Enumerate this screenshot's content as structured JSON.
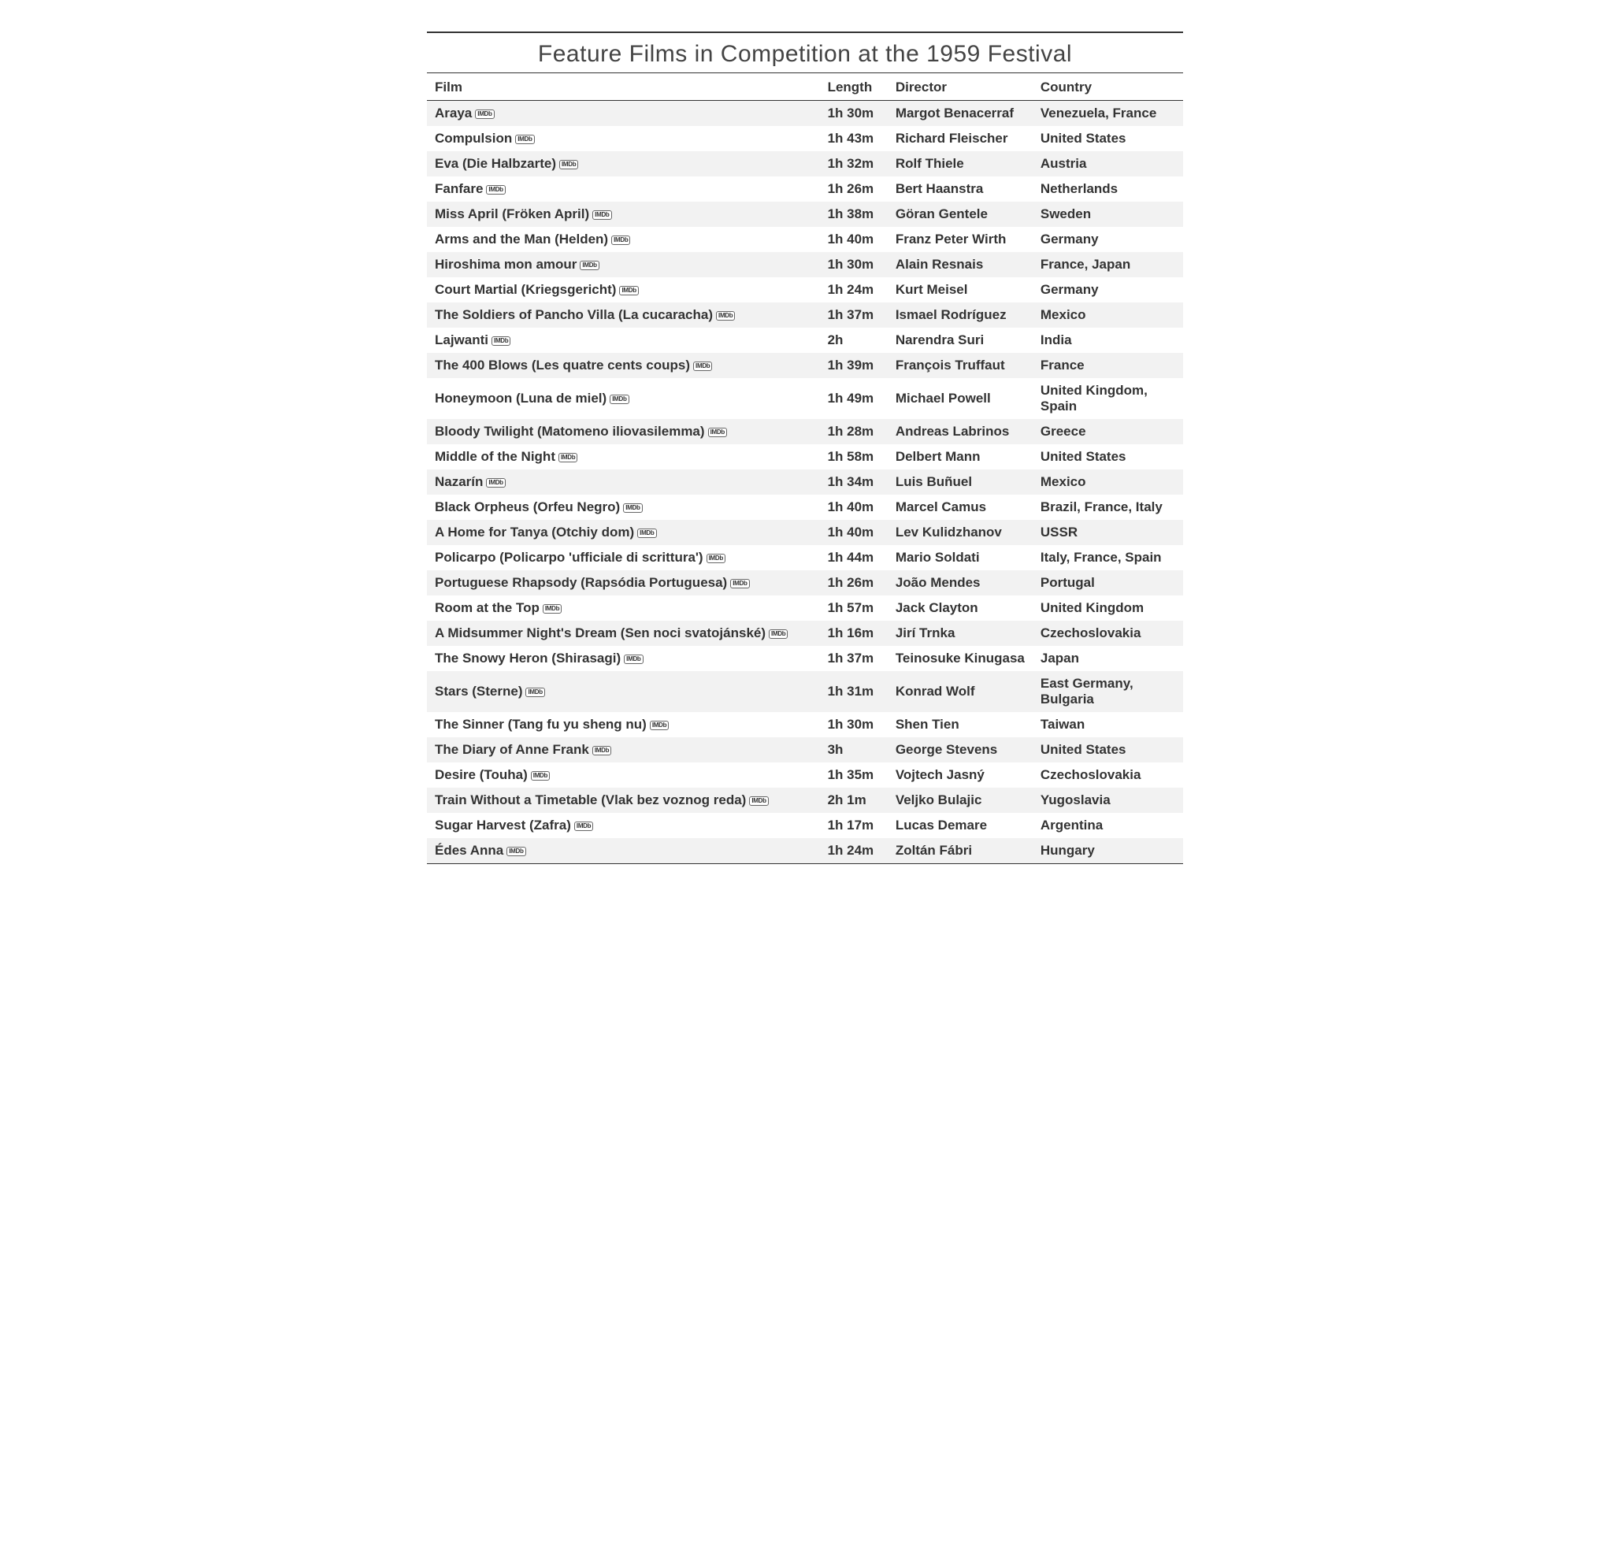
{
  "title": "Feature Films in Competition at the 1959 Festival",
  "columns": [
    "Film",
    "Length",
    "Director",
    "Country"
  ],
  "imdb_label": "IMDb",
  "rows": [
    {
      "film": "Araya",
      "length": "1h 30m",
      "director": "Margot Benacerraf",
      "country": "Venezuela, France"
    },
    {
      "film": "Compulsion",
      "length": "1h 43m",
      "director": "Richard Fleischer",
      "country": "United States"
    },
    {
      "film": "Eva (Die Halbzarte)",
      "length": "1h 32m",
      "director": "Rolf Thiele",
      "country": "Austria"
    },
    {
      "film": "Fanfare",
      "length": "1h 26m",
      "director": "Bert Haanstra",
      "country": "Netherlands"
    },
    {
      "film": "Miss April (Fröken April)",
      "length": "1h 38m",
      "director": "Göran Gentele",
      "country": "Sweden"
    },
    {
      "film": "Arms and the Man (Helden)",
      "length": "1h 40m",
      "director": "Franz Peter Wirth",
      "country": "Germany"
    },
    {
      "film": "Hiroshima mon amour",
      "length": "1h 30m",
      "director": "Alain Resnais",
      "country": "France, Japan"
    },
    {
      "film": "Court Martial (Kriegsgericht)",
      "length": "1h 24m",
      "director": "Kurt Meisel",
      "country": "Germany"
    },
    {
      "film": "The Soldiers of Pancho Villa (La cucaracha)",
      "length": "1h 37m",
      "director": "Ismael Rodríguez",
      "country": "Mexico"
    },
    {
      "film": "Lajwanti",
      "length": "2h",
      "director": "Narendra Suri",
      "country": "India"
    },
    {
      "film": "The 400 Blows (Les quatre cents coups)",
      "length": "1h 39m",
      "director": "François Truffaut",
      "country": "France"
    },
    {
      "film": "Honeymoon (Luna de miel)",
      "length": "1h 49m",
      "director": "Michael Powell",
      "country": "United Kingdom, Spain"
    },
    {
      "film": "Bloody Twilight (Matomeno iliovasilemma)",
      "length": "1h 28m",
      "director": "Andreas Labrinos",
      "country": "Greece"
    },
    {
      "film": "Middle of the Night",
      "length": "1h 58m",
      "director": "Delbert Mann",
      "country": "United States"
    },
    {
      "film": "Nazarín",
      "length": "1h 34m",
      "director": "Luis Buñuel",
      "country": "Mexico"
    },
    {
      "film": "Black Orpheus (Orfeu Negro)",
      "length": "1h 40m",
      "director": "Marcel Camus",
      "country": "Brazil, France, Italy"
    },
    {
      "film": "A Home for Tanya (Otchiy dom)",
      "length": "1h 40m",
      "director": "Lev Kulidzhanov",
      "country": "USSR"
    },
    {
      "film": "Policarpo (Policarpo 'ufficiale di scrittura')",
      "length": "1h 44m",
      "director": "Mario Soldati",
      "country": "Italy, France, Spain"
    },
    {
      "film": "Portuguese Rhapsody (Rapsódia Portuguesa)",
      "length": "1h 26m",
      "director": "João Mendes",
      "country": "Portugal"
    },
    {
      "film": "Room at the Top",
      "length": "1h 57m",
      "director": "Jack Clayton",
      "country": "United Kingdom"
    },
    {
      "film": "A Midsummer Night's Dream (Sen noci svatojánské)",
      "length": "1h 16m",
      "director": "Jirí Trnka",
      "country": "Czechoslovakia"
    },
    {
      "film": "The Snowy Heron (Shirasagi)",
      "length": "1h 37m",
      "director": "Teinosuke Kinugasa",
      "country": "Japan"
    },
    {
      "film": "Stars (Sterne)",
      "length": "1h 31m",
      "director": "Konrad Wolf",
      "country": "East Germany, Bulgaria"
    },
    {
      "film": "The Sinner (Tang fu yu sheng nu)",
      "length": "1h 30m",
      "director": "Shen Tien",
      "country": "Taiwan"
    },
    {
      "film": "The Diary of Anne Frank",
      "length": "3h",
      "director": "George Stevens",
      "country": "United States"
    },
    {
      "film": "Desire (Touha)",
      "length": "1h 35m",
      "director": "Vojtech Jasný",
      "country": "Czechoslovakia"
    },
    {
      "film": "Train Without a Timetable (Vlak bez voznog reda)",
      "length": "2h 1m",
      "director": "Veljko Bulajic",
      "country": "Yugoslavia"
    },
    {
      "film": "Sugar Harvest (Zafra)",
      "length": "1h 17m",
      "director": "Lucas Demare",
      "country": "Argentina"
    },
    {
      "film": "Édes Anna",
      "length": "1h 24m",
      "director": "Zoltán Fábri",
      "country": "Hungary"
    }
  ]
}
